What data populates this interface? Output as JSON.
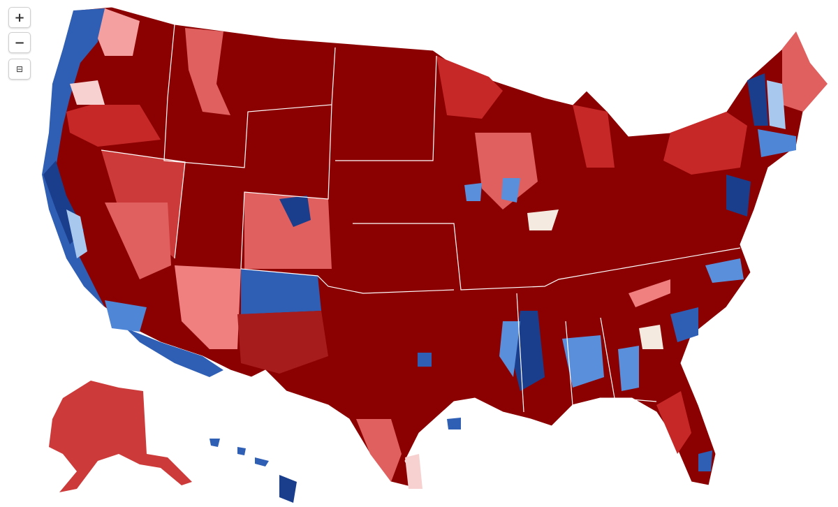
{
  "controls": {
    "zoom_in": "+",
    "zoom_out": "−",
    "reset": "⊟"
  }
}
